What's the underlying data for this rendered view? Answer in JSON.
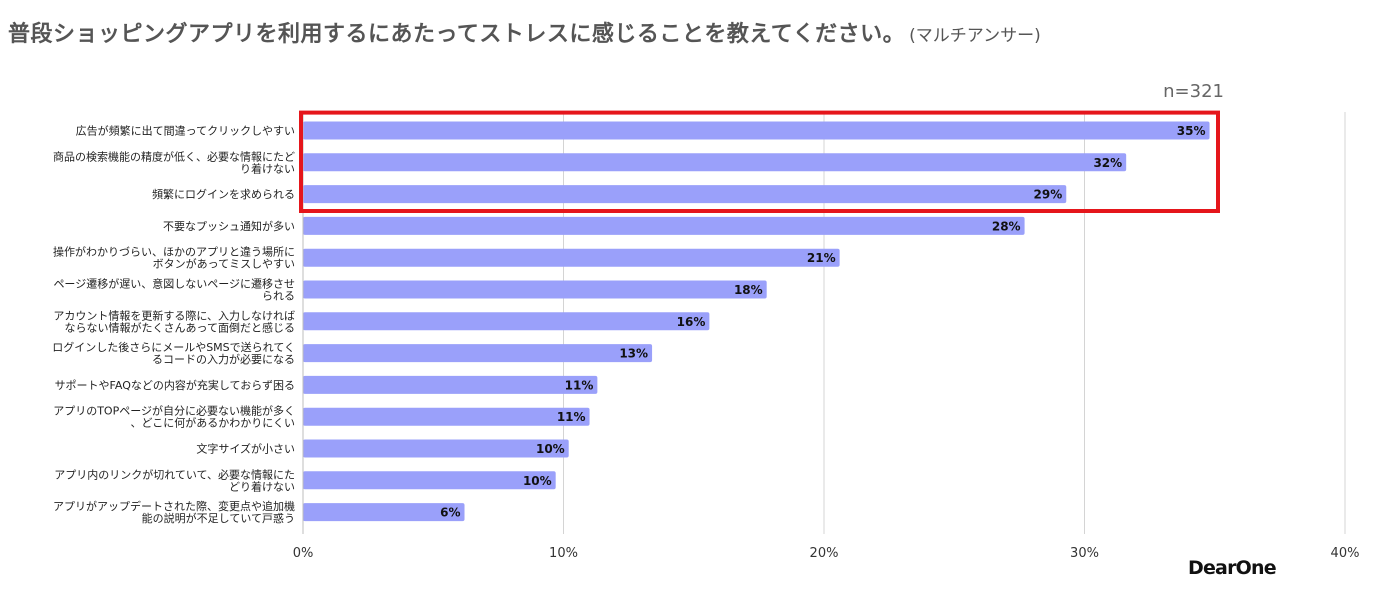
{
  "header": {
    "title": "普段ショッピングアプリを利用するにあたってストレスに感じることを教えてください。",
    "subtitle": "(マルチアンサー)",
    "sample_size": "n=321"
  },
  "brand": {
    "logo_text": "DearOne"
  },
  "colors": {
    "bar": "#9aa0fa",
    "highlight": "#e5161b",
    "grid": "#d4d4d4"
  },
  "chart_data": {
    "type": "bar",
    "orientation": "horizontal",
    "categories": [
      [
        "広告が頻繁に出て間違ってクリックしやすい"
      ],
      [
        "商品の検索機能の精度が低く、必要な情報にたど",
        "り着けない"
      ],
      [
        "頻繁にログインを求められる"
      ],
      [
        "不要なプッシュ通知が多い"
      ],
      [
        "操作がわかりづらい、ほかのアプリと違う場所に",
        "ボタンがあってミスしやすい"
      ],
      [
        "ページ遷移が遅い、意図しないページに遷移させ",
        "られる"
      ],
      [
        "アカウント情報を更新する際に、入力しなければ",
        "ならない情報がたくさんあって面倒だと感じる"
      ],
      [
        "ログインした後さらにメールやSMSで送られてく",
        "るコードの入力が必要になる"
      ],
      [
        "サポートやFAQなどの内容が充実しておらず困る"
      ],
      [
        "アプリのTOPページが自分に必要ない機能が多く",
        "、どこに何があるかわかりにくい"
      ],
      [
        "文字サイズが小さい"
      ],
      [
        "アプリ内のリンクが切れていて、必要な情報にた",
        "どり着けない"
      ],
      [
        "アプリがアップデートされた際、変更点や追加機",
        "能の説明が不足していて戸惑う"
      ]
    ],
    "values": [
      34.8,
      31.6,
      29.3,
      27.7,
      20.6,
      17.8,
      15.6,
      13.4,
      11.3,
      11.0,
      10.2,
      9.7,
      6.2
    ],
    "data_labels": [
      "35%",
      "32%",
      "29%",
      "28%",
      "21%",
      "18%",
      "16%",
      "13%",
      "11%",
      "11%",
      "10%",
      "10%",
      "6%"
    ],
    "xlim": [
      0,
      40
    ],
    "xticks": [
      0,
      10,
      20,
      30,
      40
    ],
    "xtick_labels": [
      "0%",
      "10%",
      "20%",
      "30%",
      "40%"
    ],
    "grid": true,
    "highlighted_count": 3
  }
}
